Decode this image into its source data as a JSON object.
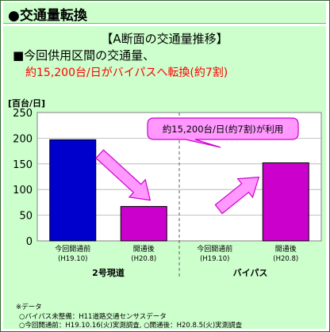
{
  "header": {
    "title": "●交通量転換"
  },
  "subtitle": "【A断面の交通量推移】",
  "section_label": "■今回供用区間の交通量、",
  "highlight": "約15,200台/日がバイパスへ転換(約7割)",
  "callout": "約15,200台/日(約7割)が利用",
  "colors": {
    "bg": "#ccffcc",
    "bar_before": "#0000cc",
    "bar_after": "#cc00cc",
    "arrow": "#ff99ff",
    "highlight": "#ff0000"
  },
  "chart_data": {
    "type": "bar",
    "y_unit": "[百台/日]",
    "ylim": [
      0,
      250
    ],
    "yticks": [
      "0",
      "50",
      "100",
      "150",
      "200",
      "250"
    ],
    "grid": true,
    "groups": [
      {
        "name": "2号現道",
        "bars": [
          {
            "label": "今回開通前",
            "sublabel": "(H19.10)",
            "value": 197,
            "color": "#0000cc"
          },
          {
            "label": "開通後",
            "sublabel": "(H20.8)",
            "value": 67,
            "color": "#cc00cc"
          }
        ]
      },
      {
        "name": "バイパス",
        "bars": [
          {
            "label": "今回開通前",
            "sublabel": "(H19.10)",
            "value": 0,
            "color": "#0000cc"
          },
          {
            "label": "開通後",
            "sublabel": "(H20.8)",
            "value": 152,
            "color": "#cc00cc"
          }
        ]
      }
    ]
  },
  "notes": [
    "※データ",
    "○バイパス未整備：H11道路交通センサスデータ",
    "○今回開通前：H19.10.16(火)実測調査, ○開通後：H20.8.5(火)実測調査"
  ]
}
